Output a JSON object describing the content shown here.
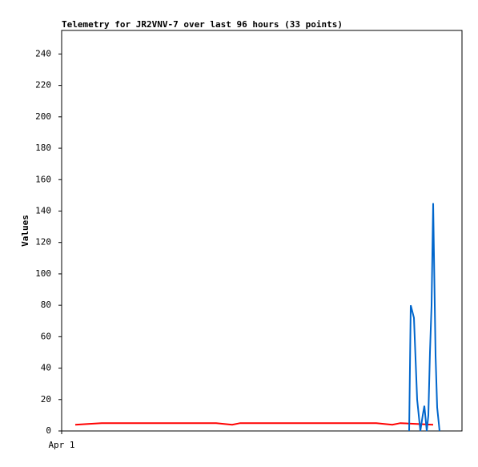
{
  "chart_data": {
    "type": "line",
    "title": "Telemetry for JR2VNV-7 over last 96 hours (33 points)",
    "y_label": "Values",
    "xlim": [
      0,
      100
    ],
    "xticks": [
      {
        "value": 0,
        "label": "Apr 1"
      }
    ],
    "ylim": [
      0,
      255
    ],
    "yticks": [
      0,
      20,
      40,
      60,
      80,
      100,
      120,
      140,
      160,
      180,
      200,
      220,
      240
    ],
    "series": [
      {
        "name": null,
        "color": "#ff0000",
        "x": [
          3.4,
          6.6,
          10,
          38.6,
          42.6,
          44.6,
          78.6,
          82.6,
          84.6,
          92.8
        ],
        "values": [
          4,
          4.5,
          5,
          5,
          4,
          5,
          5,
          4,
          5,
          4
        ]
      },
      {
        "name": null,
        "color": "#0066cc",
        "x": [
          86.8,
          87.2,
          88,
          88.8,
          89.6,
          90.2,
          90.6,
          91.2,
          91.6,
          92,
          92.4,
          92.8,
          93,
          93.4,
          93.8,
          94.2,
          94.4
        ],
        "values": [
          0,
          80,
          72,
          20,
          0,
          10,
          16,
          0,
          10,
          50,
          80,
          145,
          112,
          48,
          15,
          5,
          0
        ]
      }
    ]
  }
}
